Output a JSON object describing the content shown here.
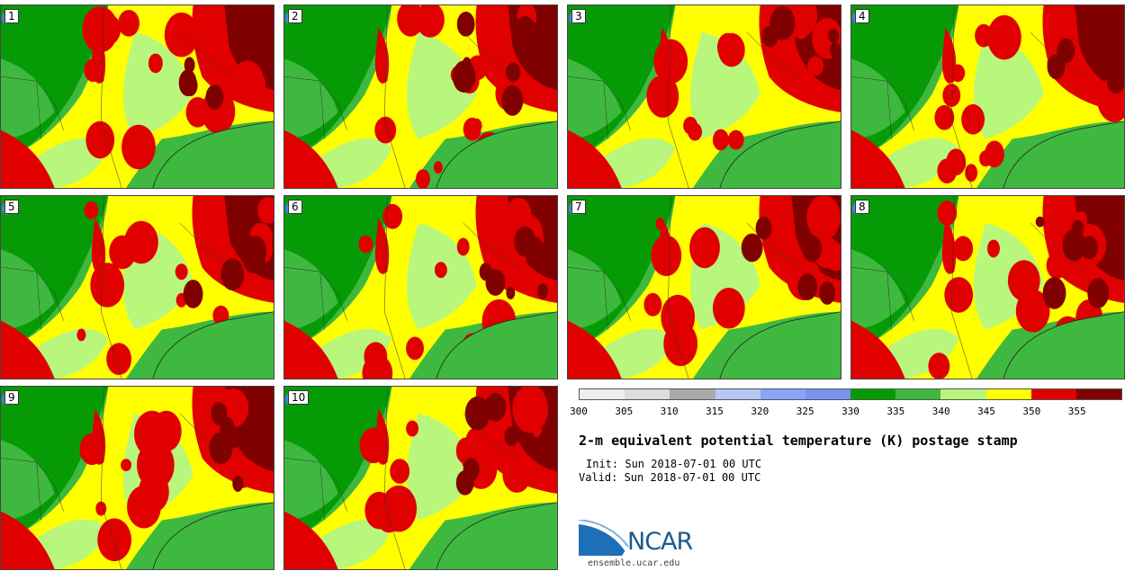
{
  "panels": [
    {
      "label": "1"
    },
    {
      "label": "2"
    },
    {
      "label": "3"
    },
    {
      "label": "4"
    },
    {
      "label": "5"
    },
    {
      "label": "6"
    },
    {
      "label": "7"
    },
    {
      "label": "8"
    },
    {
      "label": "9"
    },
    {
      "label": "10"
    }
  ],
  "colorbar": {
    "ticks": [
      "300",
      "305",
      "310",
      "315",
      "320",
      "325",
      "330",
      "335",
      "340",
      "345",
      "350",
      "355"
    ],
    "colors": [
      "#eeeeee",
      "#dddddd",
      "#aaaaaa",
      "#b7c8f7",
      "#8aa4f7",
      "#7b92f0",
      "#069b06",
      "#3fb83f",
      "#b9f67c",
      "#ffff00",
      "#e00000",
      "#800000"
    ]
  },
  "title": "2-m equivalent potential temperature (K) postage stamp",
  "init": "Init: Sun 2018-07-01 00 UTC",
  "valid": "Valid: Sun 2018-07-01 00 UTC",
  "logo": {
    "text": "NCAR",
    "url": "ensemble.ucar.edu"
  },
  "map_colors": {
    "dark_green": "#069b06",
    "green": "#3fb83f",
    "light_green": "#b9f67c",
    "yellow": "#ffff00",
    "red": "#e00000",
    "dark_red": "#800000",
    "lake": "#4a7df0"
  }
}
